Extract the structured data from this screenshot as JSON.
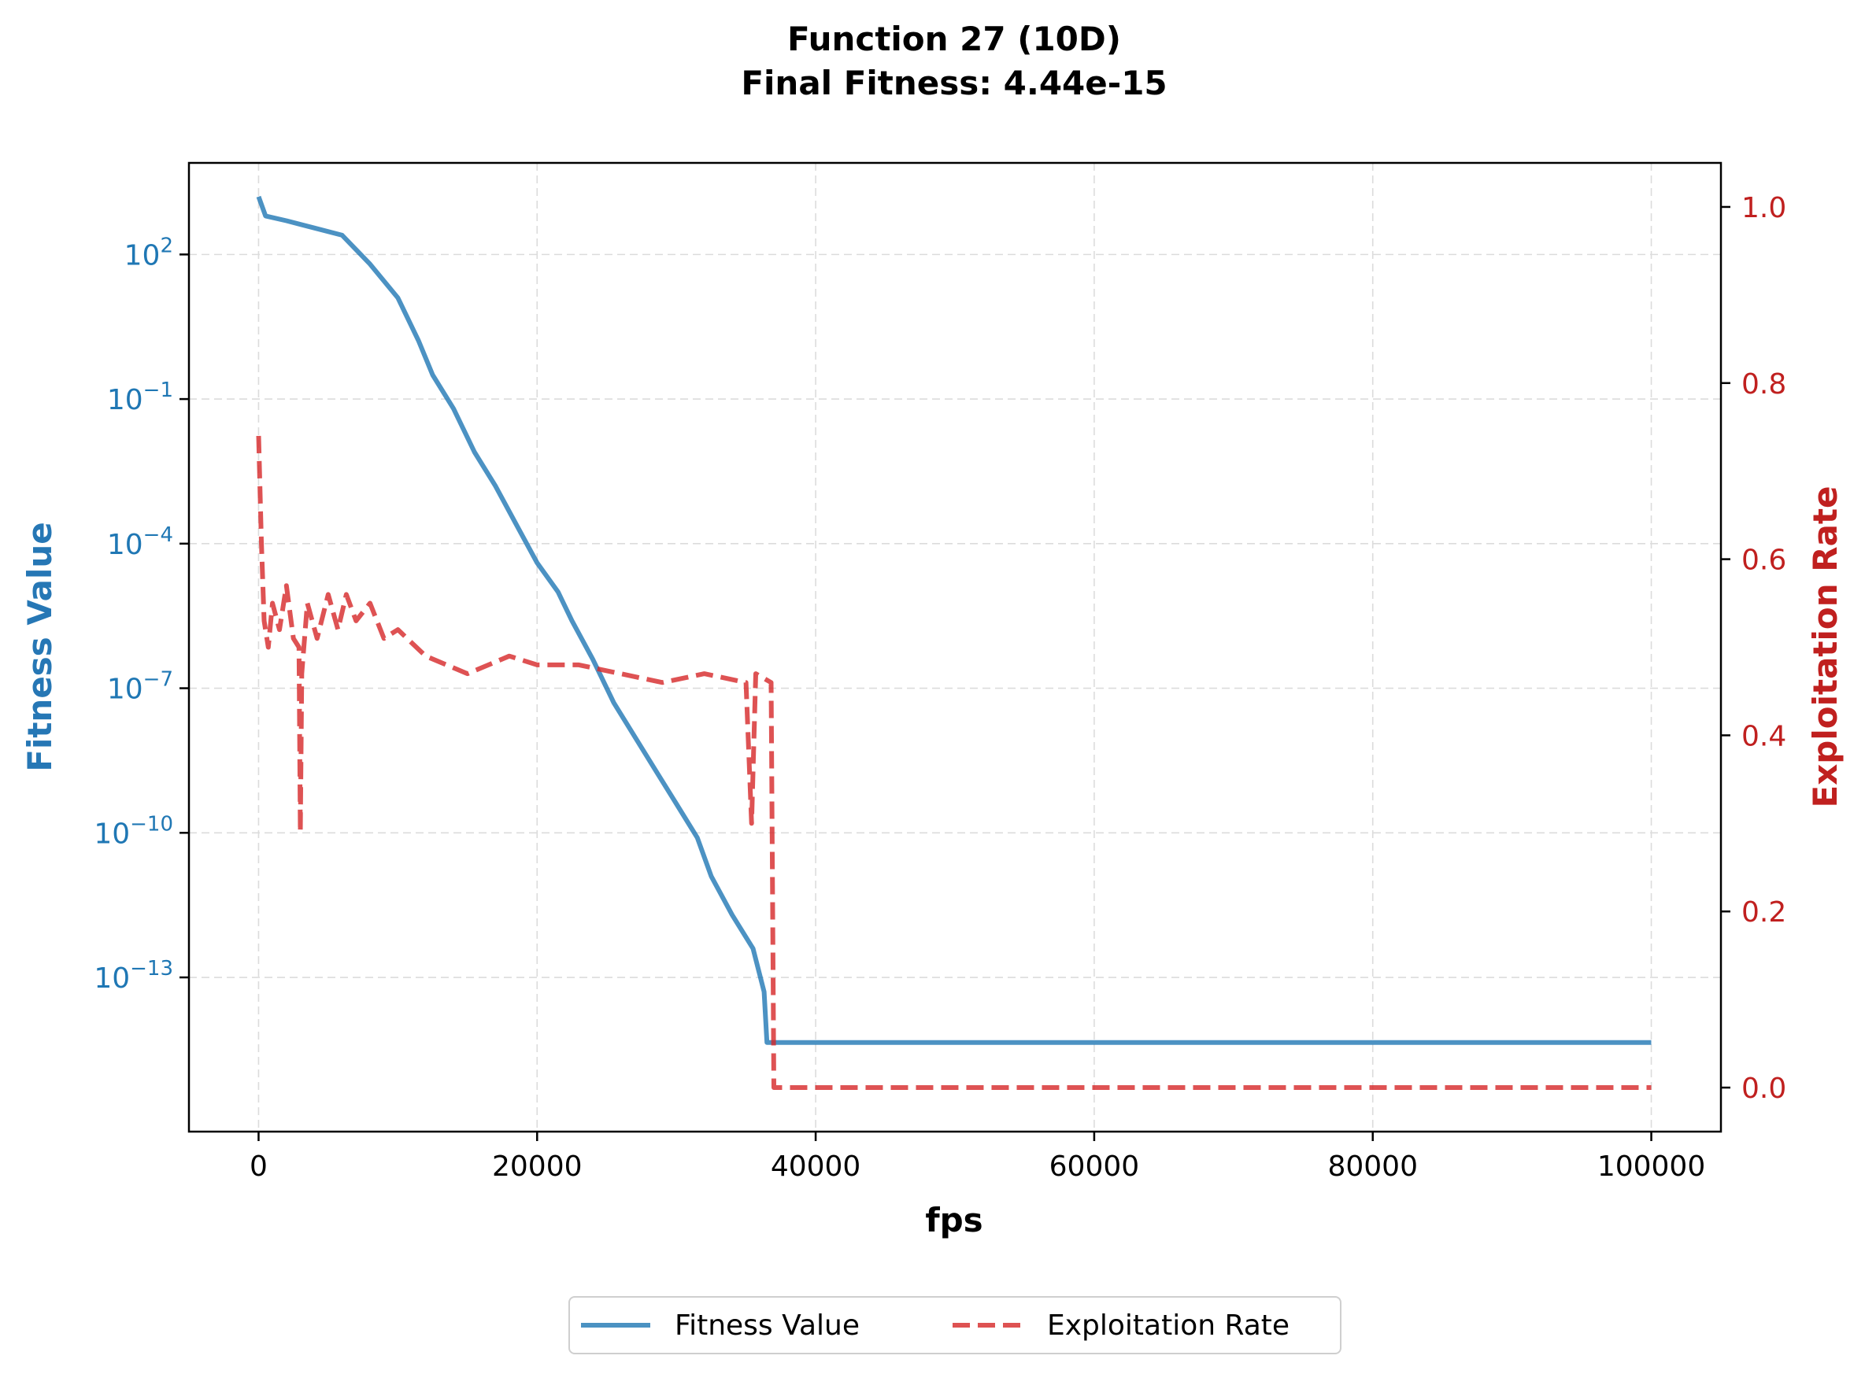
{
  "chart_data": {
    "type": "line",
    "title": "Function 27 (10D)",
    "subtitle": "Final Fitness: 4.44e-15",
    "xlabel": "fps",
    "ylabel": "Fitness Value",
    "y2label": "Exploitation Rate",
    "xlim": [
      -5000,
      105000
    ],
    "xticks": [
      0,
      20000,
      40000,
      60000,
      80000,
      100000
    ],
    "ylim_log10": [
      -16.2,
      3.9
    ],
    "yscale": "log",
    "yticks": [
      {
        "exp": 2,
        "label": "2"
      },
      {
        "exp": -1,
        "label": "−1"
      },
      {
        "exp": -4,
        "label": "−4"
      },
      {
        "exp": -7,
        "label": "−7"
      },
      {
        "exp": -10,
        "label": "−10"
      },
      {
        "exp": -13,
        "label": "−13"
      }
    ],
    "ytick_base": "10",
    "y2lim": [
      -0.05,
      1.05
    ],
    "y2ticks": [
      "0.0",
      "0.2",
      "0.4",
      "0.6",
      "0.8",
      "1.0"
    ],
    "grid": true,
    "legend_position": "bottom-center",
    "series": [
      {
        "name": "Fitness Value",
        "axis": "left",
        "color": "#1f77b4",
        "style": "solid",
        "x_log10y": [
          [
            0,
            3.2
          ],
          [
            500,
            2.8
          ],
          [
            2000,
            2.7
          ],
          [
            4000,
            2.55
          ],
          [
            6000,
            2.4
          ],
          [
            8000,
            1.8
          ],
          [
            10000,
            1.1
          ],
          [
            11500,
            0.2
          ],
          [
            12500,
            -0.5
          ],
          [
            14000,
            -1.2
          ],
          [
            15500,
            -2.1
          ],
          [
            17000,
            -2.8
          ],
          [
            18500,
            -3.6
          ],
          [
            20000,
            -4.4
          ],
          [
            21500,
            -5.0
          ],
          [
            22500,
            -5.6
          ],
          [
            24000,
            -6.4
          ],
          [
            25500,
            -7.3
          ],
          [
            27000,
            -8.0
          ],
          [
            28500,
            -8.7
          ],
          [
            30000,
            -9.4
          ],
          [
            31500,
            -10.1
          ],
          [
            32500,
            -10.9
          ],
          [
            34000,
            -11.7
          ],
          [
            35500,
            -12.4
          ],
          [
            36300,
            -13.3
          ],
          [
            36500,
            -14.35
          ],
          [
            100000,
            -14.35
          ]
        ]
      },
      {
        "name": "Exploitation Rate",
        "axis": "right",
        "color": "#d62728",
        "style": "dashed",
        "x_y": [
          [
            0,
            0.74
          ],
          [
            200,
            0.62
          ],
          [
            400,
            0.53
          ],
          [
            700,
            0.5
          ],
          [
            1000,
            0.55
          ],
          [
            1500,
            0.52
          ],
          [
            2000,
            0.57
          ],
          [
            2500,
            0.51
          ],
          [
            2900,
            0.5
          ],
          [
            3000,
            0.29
          ],
          [
            3100,
            0.47
          ],
          [
            3500,
            0.55
          ],
          [
            4200,
            0.51
          ],
          [
            5000,
            0.56
          ],
          [
            5700,
            0.52
          ],
          [
            6300,
            0.56
          ],
          [
            7000,
            0.53
          ],
          [
            8000,
            0.55
          ],
          [
            9000,
            0.51
          ],
          [
            10000,
            0.52
          ],
          [
            12000,
            0.49
          ],
          [
            15000,
            0.47
          ],
          [
            18000,
            0.49
          ],
          [
            20000,
            0.48
          ],
          [
            23000,
            0.48
          ],
          [
            26000,
            0.47
          ],
          [
            29000,
            0.46
          ],
          [
            32000,
            0.47
          ],
          [
            35000,
            0.46
          ],
          [
            35400,
            0.3
          ],
          [
            35700,
            0.47
          ],
          [
            36800,
            0.46
          ],
          [
            37000,
            0.0
          ],
          [
            100000,
            0.0
          ]
        ]
      }
    ]
  }
}
